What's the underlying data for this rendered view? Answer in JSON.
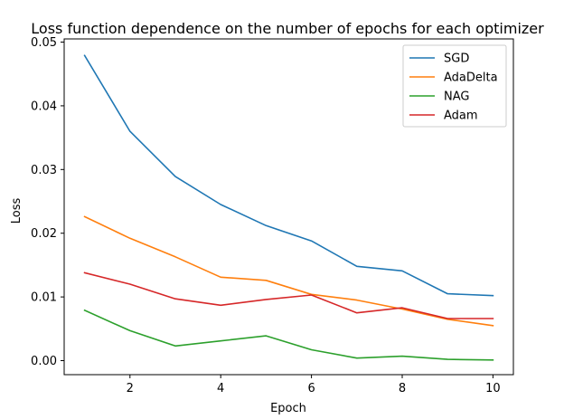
{
  "chart_data": {
    "type": "line",
    "title": "Loss function dependence on the number of epochs for each optimizer",
    "xlabel": "Epoch",
    "ylabel": "Loss",
    "xlim": [
      0.55,
      10.45
    ],
    "ylim": [
      -0.0022,
      0.0505
    ],
    "xticks": [
      2,
      4,
      6,
      8,
      10
    ],
    "xtick_labels": [
      "2",
      "4",
      "6",
      "8",
      "10"
    ],
    "yticks": [
      0.0,
      0.01,
      0.02,
      0.03,
      0.04,
      0.05
    ],
    "ytick_labels": [
      "0.00",
      "0.01",
      "0.02",
      "0.03",
      "0.04",
      "0.05"
    ],
    "grid": false,
    "legend_position": "top-right",
    "x": [
      1,
      2,
      3,
      4,
      5,
      6,
      7,
      8,
      9,
      10
    ],
    "series": [
      {
        "name": "SGD",
        "color": "#1f77b4",
        "values": [
          0.0479,
          0.036,
          0.0289,
          0.0245,
          0.0212,
          0.0188,
          0.0148,
          0.0141,
          0.0105,
          0.0102
        ]
      },
      {
        "name": "AdaDelta",
        "color": "#ff7f0e",
        "values": [
          0.0226,
          0.0192,
          0.0163,
          0.0131,
          0.0126,
          0.0104,
          0.0095,
          0.0081,
          0.0065,
          0.0055
        ]
      },
      {
        "name": "NAG",
        "color": "#2ca02c",
        "values": [
          0.0079,
          0.0047,
          0.0023,
          0.0031,
          0.0039,
          0.0017,
          0.0004,
          0.0007,
          0.0002,
          0.0001
        ]
      },
      {
        "name": "Adam",
        "color": "#d62728",
        "values": [
          0.0138,
          0.012,
          0.0097,
          0.0087,
          0.0096,
          0.0103,
          0.0075,
          0.0083,
          0.0066,
          0.0066
        ]
      }
    ]
  }
}
